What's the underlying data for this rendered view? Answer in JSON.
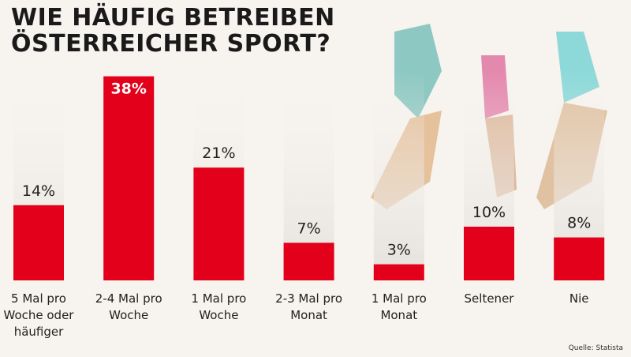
{
  "chart_data": {
    "type": "bar",
    "title": "WIE HÄUFIG BETREIBEN ÖSTERREICHER SPORT?",
    "categories": [
      "5 Mal pro Woche oder häufiger",
      "2-4 Mal pro Woche",
      "1 Mal pro Woche",
      "2-3 Mal pro Monat",
      "1 Mal pro Monat",
      "Seltener",
      "Nie"
    ],
    "values": [
      14,
      38,
      21,
      7,
      3,
      10,
      8
    ],
    "value_labels": [
      "14%",
      "38%",
      "21%",
      "7%",
      "3%",
      "10%",
      "8%"
    ],
    "color": "#e2001a",
    "source": "Quelle: Statista"
  }
}
